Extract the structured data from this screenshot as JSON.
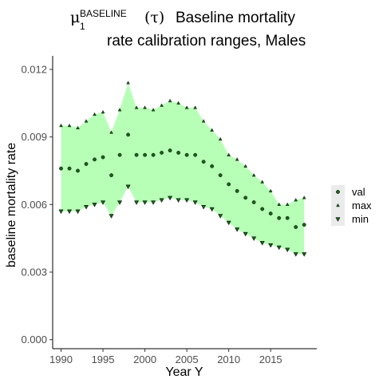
{
  "chart_data": {
    "type": "area",
    "title": {
      "symbol": "μ",
      "subscript": "1",
      "superscript": "BASELINE",
      "argument": "(τ)",
      "line1": "Baseline mortality",
      "line2": "rate calibration ranges, Males"
    },
    "xlabel": "Year Y",
    "ylabel": "baseline mortality rate",
    "xlim": [
      1989,
      2020.5
    ],
    "ylim": [
      -0.0004,
      0.0126
    ],
    "x_ticks": [
      1990,
      1995,
      2000,
      2005,
      2010,
      2015
    ],
    "x_tick_labels": [
      "1990",
      "1995",
      "2000",
      "2005",
      "2010",
      "2015"
    ],
    "y_ticks": [
      0.0,
      0.003,
      0.006,
      0.009,
      0.012
    ],
    "y_tick_labels": [
      "0.000",
      "0.003",
      "0.006",
      "0.009",
      "0.012"
    ],
    "grid": false,
    "legend_position": "right",
    "x": [
      1990,
      1991,
      1992,
      1993,
      1994,
      1995,
      1996,
      1997,
      1998,
      1999,
      2000,
      2001,
      2002,
      2003,
      2004,
      2005,
      2006,
      2007,
      2008,
      2009,
      2010,
      2011,
      2012,
      2013,
      2014,
      2015,
      2016,
      2017,
      2018,
      2019
    ],
    "series": [
      {
        "name": "val",
        "color": "#1a5e1a",
        "marker": "circle",
        "values": [
          0.0076,
          0.0076,
          0.0075,
          0.0078,
          0.008,
          0.0081,
          0.0073,
          0.0082,
          0.0091,
          0.0082,
          0.0082,
          0.0082,
          0.0083,
          0.0084,
          0.0083,
          0.0082,
          0.0082,
          0.0079,
          0.0077,
          0.0073,
          0.0069,
          0.0066,
          0.0063,
          0.0061,
          0.0058,
          0.0056,
          0.0054,
          0.0054,
          0.005,
          0.0051
        ]
      },
      {
        "name": "max",
        "color": "#1a5e1a",
        "marker": "triangle-up",
        "values": [
          0.0095,
          0.0095,
          0.0094,
          0.0097,
          0.01,
          0.0101,
          0.0092,
          0.0102,
          0.0114,
          0.0103,
          0.0103,
          0.0102,
          0.0104,
          0.0106,
          0.0105,
          0.0103,
          0.0103,
          0.0097,
          0.0093,
          0.0089,
          0.0082,
          0.008,
          0.0077,
          0.0073,
          0.007,
          0.0066,
          0.006,
          0.006,
          0.0062,
          0.0063
        ]
      },
      {
        "name": "min",
        "color": "#1a5e1a",
        "marker": "triangle-down",
        "values": [
          0.0057,
          0.0057,
          0.0057,
          0.0059,
          0.006,
          0.0061,
          0.0055,
          0.0061,
          0.0068,
          0.0061,
          0.0061,
          0.0061,
          0.0062,
          0.0063,
          0.0062,
          0.0062,
          0.0061,
          0.0059,
          0.0058,
          0.0055,
          0.0052,
          0.0049,
          0.0047,
          0.0045,
          0.0043,
          0.0042,
          0.0041,
          0.004,
          0.0038,
          0.0038
        ]
      }
    ],
    "ribbon": {
      "lower": "min",
      "upper": "max",
      "fill": "#b7ffb7"
    },
    "legend_key_bg": "#ebebeb"
  }
}
